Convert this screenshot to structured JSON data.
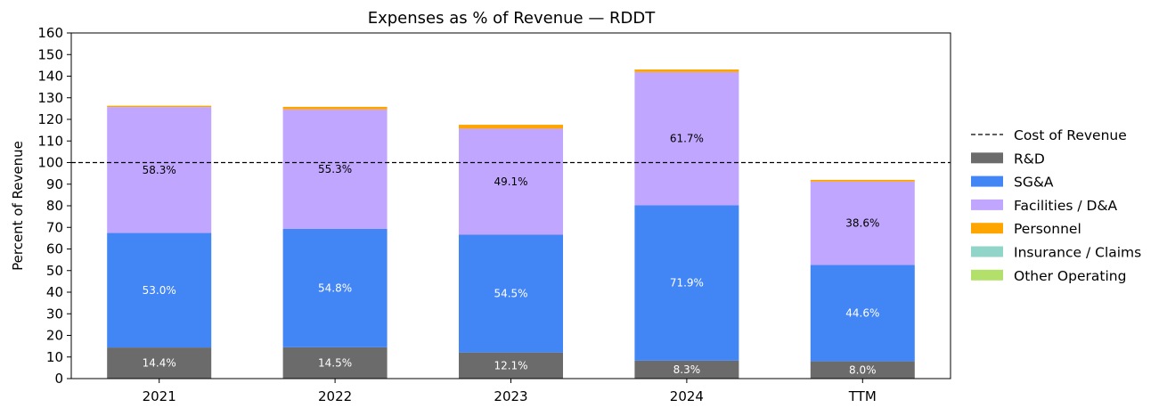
{
  "chart_data": {
    "type": "bar",
    "stacked": true,
    "title": "Expenses as % of Revenue — RDDT",
    "xlabel": "",
    "ylabel": "Percent of Revenue",
    "ylim": [
      0,
      160
    ],
    "yticks": [
      0,
      10,
      20,
      30,
      40,
      50,
      60,
      70,
      80,
      90,
      100,
      110,
      120,
      130,
      140,
      150,
      160
    ],
    "categories": [
      "2021",
      "2022",
      "2023",
      "2024",
      "TTM"
    ],
    "grid": false,
    "legend_position": "right",
    "reference_line": {
      "name": "Cost of Revenue",
      "value": 100,
      "style": "dashed",
      "color": "#000000"
    },
    "series": [
      {
        "name": "R&D",
        "color": "#6b6b6b",
        "values": [
          14.4,
          14.5,
          12.1,
          8.3,
          8.0
        ],
        "labels": [
          "14.4%",
          "14.5%",
          "12.1%",
          "8.3%",
          "8.0%"
        ],
        "label_color": "#ffffff"
      },
      {
        "name": "SG&A",
        "color": "#4285f4",
        "values": [
          53.0,
          54.8,
          54.5,
          71.9,
          44.6
        ],
        "labels": [
          "53.0%",
          "54.8%",
          "54.5%",
          "71.9%",
          "44.6%"
        ],
        "label_color": "#ffffff"
      },
      {
        "name": "Facilities / D&A",
        "color": "#c0a6fe",
        "values": [
          58.3,
          55.3,
          49.1,
          61.7,
          38.6
        ],
        "labels": [
          "58.3%",
          "55.3%",
          "49.1%",
          "61.7%",
          "38.6%"
        ],
        "label_color": "#000000"
      },
      {
        "name": "Personnel",
        "color": "#ffa500",
        "values": [
          0.6,
          1.2,
          1.8,
          1.2,
          0.8
        ],
        "labels": [
          "",
          "",
          "",
          "",
          ""
        ],
        "label_color": "#000000"
      },
      {
        "name": "Insurance / Claims",
        "color": "#91d5c9",
        "values": [
          0,
          0,
          0,
          0,
          0
        ],
        "labels": [
          "",
          "",
          "",
          "",
          ""
        ],
        "label_color": "#000000"
      },
      {
        "name": "Other Operating",
        "color": "#b3df6b",
        "values": [
          0,
          0,
          0,
          0,
          0
        ],
        "labels": [
          "",
          "",
          "",
          "",
          ""
        ],
        "label_color": "#000000"
      }
    ]
  }
}
